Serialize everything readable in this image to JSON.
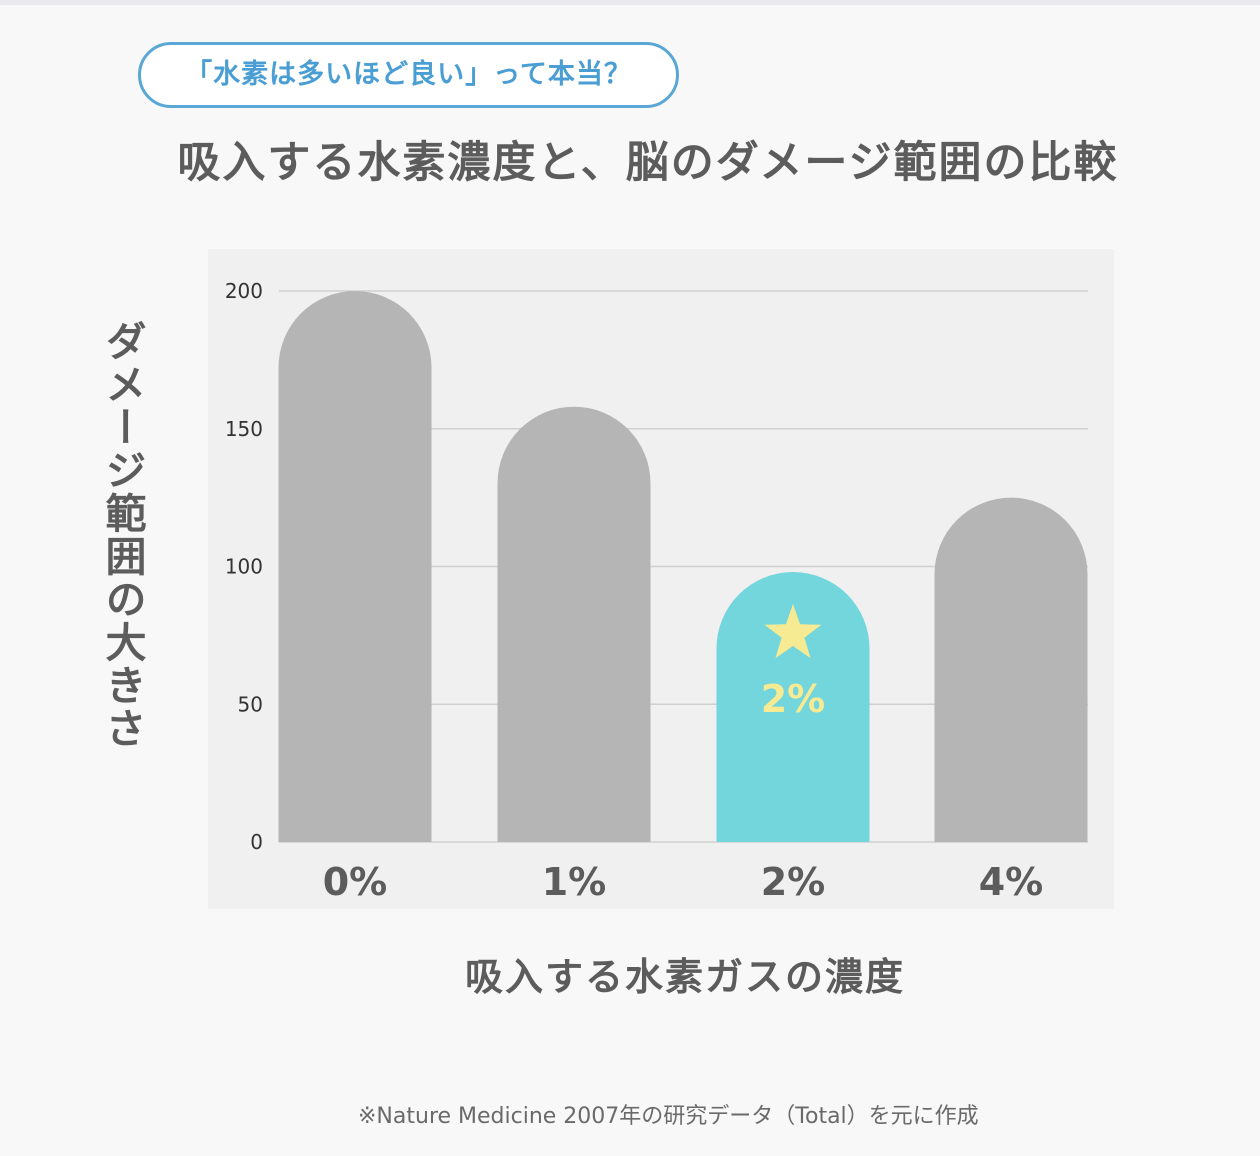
{
  "badge": "「水素は多いほど良い」って本当？",
  "title": "吸入する水素濃度と、脳のダメージ範囲の比較",
  "footnote": "※Nature Medicine 2007年の研究データ（Total）を元に作成",
  "colors": {
    "bar": "#b5b5b5",
    "highlight": "#72d6dc",
    "highlight_text": "#f6ea93",
    "grid": "#cfcfcf",
    "axis_text": "#5c5c5c",
    "tick_text": "#333333"
  },
  "chart_data": {
    "type": "bar",
    "categories": [
      "0%",
      "1%",
      "2%",
      "4%"
    ],
    "values": [
      200,
      158,
      98,
      125
    ],
    "highlight_index": 2,
    "highlight_icon": "star-icon",
    "highlight_label": "2%",
    "ylabel": "ダメージ範囲の大きさ",
    "xlabel": "吸入する水素ガスの濃度",
    "ylim": [
      0,
      200
    ],
    "yticks": [
      0,
      50,
      100,
      150,
      200
    ],
    "grid": true
  }
}
